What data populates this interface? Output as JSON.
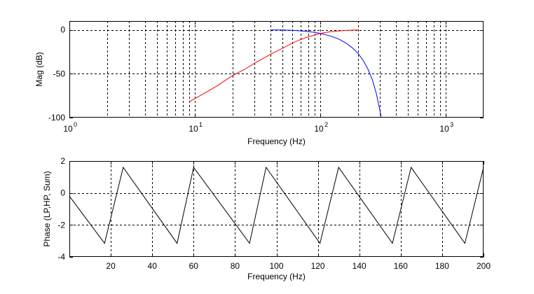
{
  "chart_data": [
    {
      "type": "line",
      "xscale": "log",
      "xlabel": "Frequency (Hz)",
      "ylabel": "Mag (dB)",
      "xlim": [
        1,
        2000
      ],
      "ylim": [
        -100,
        10
      ],
      "x_ticks": [
        1,
        10,
        100,
        1000
      ],
      "x_tick_labels": [
        {
          "base": "10",
          "exp": "0"
        },
        {
          "base": "10",
          "exp": "1"
        },
        {
          "base": "10",
          "exp": "2"
        },
        {
          "base": "10",
          "exp": "3"
        }
      ],
      "y_ticks": [
        0,
        -50,
        -100
      ],
      "y_tick_labels": [
        "0",
        "-50",
        "-100"
      ],
      "grid": true,
      "series": [
        {
          "color": "#0000ff",
          "x": [
            40,
            50,
            60,
            70,
            80,
            90,
            100,
            120,
            140,
            160,
            180,
            200,
            220,
            240,
            260,
            280,
            300,
            305
          ],
          "y": [
            -0.1,
            -0.3,
            -0.6,
            -1.2,
            -2.0,
            -3.0,
            -4.0,
            -7.0,
            -10.5,
            -15.0,
            -20.5,
            -27.0,
            -35.0,
            -45.0,
            -57.0,
            -73.0,
            -93.0,
            -100.0
          ]
        },
        {
          "color": "#ff0000",
          "x": [
            9,
            12,
            15,
            20,
            25,
            30,
            40,
            50,
            60,
            70,
            80,
            90,
            100,
            120,
            140,
            160,
            180,
            200
          ],
          "y": [
            -82,
            -72,
            -64,
            -52,
            -45,
            -38,
            -28,
            -21,
            -15,
            -11,
            -8,
            -6,
            -4,
            -2.3,
            -1.3,
            -0.7,
            -0.4,
            -0.3
          ]
        }
      ]
    },
    {
      "type": "line",
      "xlabel": "Frequency (Hz)",
      "ylabel": "Phase (LP,HP, Sum)",
      "xlim": [
        0,
        200
      ],
      "ylim": [
        -4,
        2
      ],
      "x_ticks": [
        20,
        40,
        60,
        80,
        100,
        120,
        140,
        160,
        180,
        200
      ],
      "x_tick_labels": [
        "20",
        "40",
        "60",
        "80",
        "100",
        "120",
        "140",
        "160",
        "180",
        "200"
      ],
      "y_ticks": [
        2,
        0,
        -2,
        -4
      ],
      "y_tick_labels": [
        "2",
        "0",
        "-2",
        "-4"
      ],
      "grid": true,
      "series": [
        {
          "color": "#000000",
          "x": [
            0,
            17,
            26,
            52,
            60,
            87,
            95,
            121,
            130,
            156,
            165,
            191,
            200
          ],
          "y": [
            -0.2,
            -3.15,
            1.6,
            -3.15,
            1.6,
            -3.15,
            1.6,
            -3.15,
            1.6,
            -3.15,
            1.6,
            -3.15,
            1.6
          ]
        }
      ]
    }
  ]
}
